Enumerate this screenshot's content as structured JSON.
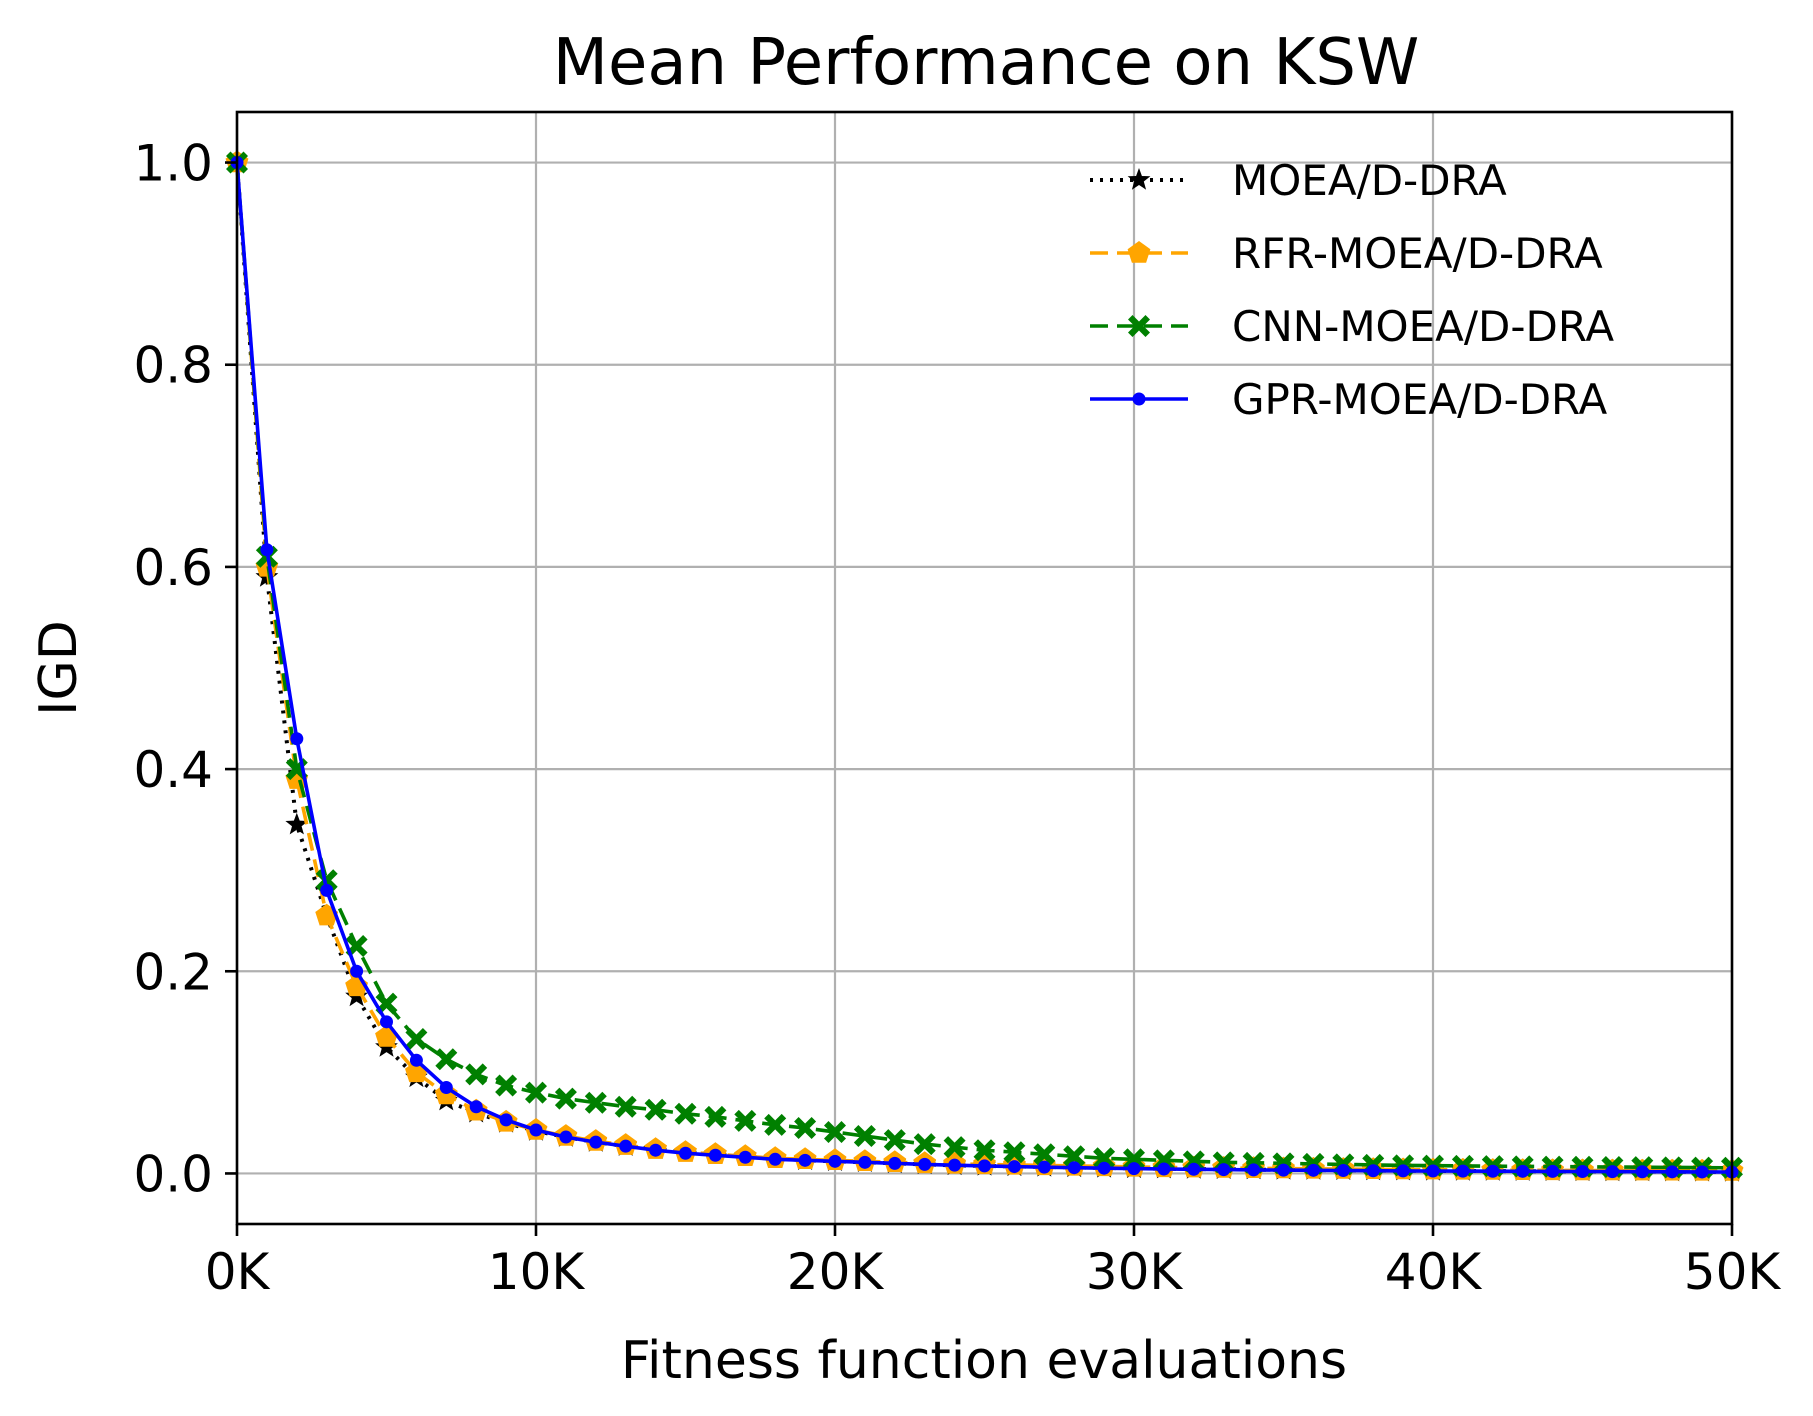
{
  "chart_data": {
    "type": "line",
    "title": "Mean Performance on KSW",
    "xlabel": "Fitness function evaluations",
    "ylabel": "IGD",
    "xlim": [
      0,
      50000
    ],
    "ylim": [
      -0.05,
      1.05
    ],
    "x_ticks": [
      0,
      10000,
      20000,
      30000,
      40000,
      50000
    ],
    "x_tick_labels": [
      "0K",
      "10K",
      "20K",
      "30K",
      "40K",
      "50K"
    ],
    "y_ticks": [
      0.0,
      0.2,
      0.4,
      0.6,
      0.8,
      1.0
    ],
    "y_tick_labels": [
      "0.0",
      "0.2",
      "0.4",
      "0.6",
      "0.8",
      "1.0"
    ],
    "grid": true,
    "legend_position": "top-right",
    "x": [
      0,
      1000,
      2000,
      3000,
      4000,
      5000,
      6000,
      7000,
      8000,
      9000,
      10000,
      11000,
      12000,
      13000,
      14000,
      15000,
      16000,
      17000,
      18000,
      19000,
      20000,
      21000,
      22000,
      23000,
      24000,
      25000,
      26000,
      27000,
      28000,
      29000,
      30000,
      31000,
      32000,
      33000,
      34000,
      35000,
      36000,
      37000,
      38000,
      39000,
      40000,
      41000,
      42000,
      43000,
      44000,
      45000,
      46000,
      47000,
      48000,
      49000,
      50000
    ],
    "series": [
      {
        "name": "MOEA/D-DRA",
        "color": "#000000",
        "line_style": "dotted",
        "marker": "star",
        "values": [
          1.0,
          0.59,
          0.345,
          0.255,
          0.175,
          0.125,
          0.095,
          0.072,
          0.06,
          0.05,
          0.042,
          0.036,
          0.031,
          0.027,
          0.024,
          0.021,
          0.019,
          0.017,
          0.015,
          0.013,
          0.012,
          0.011,
          0.01,
          0.009,
          0.008,
          0.0075,
          0.007,
          0.0065,
          0.006,
          0.0055,
          0.005,
          0.0047,
          0.0044,
          0.0041,
          0.0038,
          0.0035,
          0.0033,
          0.0031,
          0.0029,
          0.0027,
          0.0025,
          0.0024,
          0.0023,
          0.0022,
          0.0021,
          0.002,
          0.0019,
          0.0018,
          0.0017,
          0.0016,
          0.0015
        ]
      },
      {
        "name": "RFR-MOEA/D-DRA",
        "color": "#ffa500",
        "line_style": "dashed",
        "marker": "pentagon",
        "values": [
          1.0,
          0.6,
          0.39,
          0.255,
          0.185,
          0.135,
          0.1,
          0.078,
          0.062,
          0.051,
          0.043,
          0.037,
          0.032,
          0.028,
          0.024,
          0.021,
          0.019,
          0.017,
          0.015,
          0.014,
          0.013,
          0.012,
          0.011,
          0.01,
          0.0095,
          0.009,
          0.0085,
          0.008,
          0.0075,
          0.007,
          0.0065,
          0.006,
          0.0057,
          0.0054,
          0.0051,
          0.0048,
          0.0045,
          0.0043,
          0.0041,
          0.0039,
          0.0037,
          0.0035,
          0.0033,
          0.0031,
          0.003,
          0.0029,
          0.0028,
          0.0027,
          0.0026,
          0.0025,
          0.0024
        ]
      },
      {
        "name": "CNN-MOEA/D-DRA",
        "color": "#008000",
        "line_style": "dashed",
        "marker": "x",
        "values": [
          1.0,
          0.61,
          0.4,
          0.29,
          0.225,
          0.168,
          0.133,
          0.113,
          0.098,
          0.087,
          0.08,
          0.074,
          0.07,
          0.066,
          0.063,
          0.059,
          0.056,
          0.052,
          0.048,
          0.045,
          0.041,
          0.037,
          0.033,
          0.029,
          0.026,
          0.023,
          0.021,
          0.019,
          0.017,
          0.015,
          0.014,
          0.013,
          0.012,
          0.011,
          0.0105,
          0.01,
          0.0095,
          0.009,
          0.0085,
          0.008,
          0.0078,
          0.0075,
          0.0072,
          0.007,
          0.0068,
          0.0066,
          0.0064,
          0.0062,
          0.006,
          0.0058,
          0.0056
        ]
      },
      {
        "name": "GPR-MOEA/D-DRA",
        "color": "#0000ff",
        "line_style": "solid",
        "marker": "circle",
        "values": [
          1.0,
          0.617,
          0.43,
          0.28,
          0.2,
          0.15,
          0.112,
          0.085,
          0.066,
          0.053,
          0.043,
          0.036,
          0.031,
          0.027,
          0.023,
          0.02,
          0.018,
          0.016,
          0.014,
          0.013,
          0.012,
          0.011,
          0.01,
          0.009,
          0.0082,
          0.0075,
          0.0068,
          0.0062,
          0.0057,
          0.0052,
          0.0048,
          0.0044,
          0.0041,
          0.0038,
          0.0035,
          0.0033,
          0.0031,
          0.0029,
          0.0027,
          0.0025,
          0.0024,
          0.0023,
          0.0022,
          0.0021,
          0.002,
          0.0019,
          0.0018,
          0.0017,
          0.0016,
          0.0015,
          0.0014
        ]
      }
    ]
  }
}
